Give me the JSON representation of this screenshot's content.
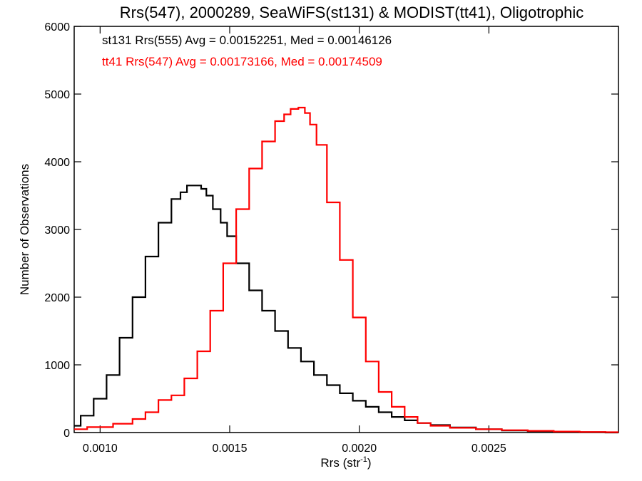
{
  "chart_data": {
    "type": "line",
    "title": "Rrs(547), 2000289, SeaWiFS(st131) & MODIST(tt41), Oligotrophic",
    "xlabel_main": "Rrs (str",
    "xlabel_sup": "-1",
    "xlabel_end": ")",
    "ylabel": "Number of Observations",
    "xlim": [
      0.0009,
      0.003
    ],
    "ylim": [
      0,
      6000
    ],
    "x_ticks": [
      {
        "value": 0.001,
        "label": "0.0010"
      },
      {
        "value": 0.0015,
        "label": "0.0015"
      },
      {
        "value": 0.002,
        "label": "0.0020"
      },
      {
        "value": 0.0025,
        "label": "0.0025"
      }
    ],
    "y_ticks": [
      {
        "value": 0,
        "label": "0"
      },
      {
        "value": 1000,
        "label": "1000"
      },
      {
        "value": 2000,
        "label": "2000"
      },
      {
        "value": 3000,
        "label": "3000"
      },
      {
        "value": 4000,
        "label": "4000"
      },
      {
        "value": 5000,
        "label": "5000"
      },
      {
        "value": 6000,
        "label": "6000"
      }
    ],
    "grid": false,
    "legend_position": "top-left",
    "series": [
      {
        "name": "st131 Rrs(555) Avg = 0.00152251, Med = 0.00146126",
        "color": "#000000",
        "x": [
          0.0009,
          0.00095,
          0.001,
          0.00105,
          0.0011,
          0.00115,
          0.0012,
          0.00125,
          0.0013,
          0.00132,
          0.00135,
          0.00138,
          0.0014,
          0.00142,
          0.00145,
          0.00148,
          0.0015,
          0.00155,
          0.0016,
          0.00165,
          0.0017,
          0.00175,
          0.0018,
          0.00185,
          0.0019,
          0.00195,
          0.002,
          0.00205,
          0.0021,
          0.00215,
          0.0022,
          0.00225,
          0.0023,
          0.0024,
          0.0025,
          0.0026,
          0.0027,
          0.0028,
          0.0029,
          0.003
        ],
        "y": [
          100,
          250,
          500,
          850,
          1400,
          2000,
          2600,
          3100,
          3450,
          3550,
          3650,
          3650,
          3600,
          3500,
          3300,
          3100,
          2900,
          2500,
          2100,
          1800,
          1500,
          1250,
          1050,
          850,
          700,
          580,
          470,
          380,
          300,
          230,
          180,
          140,
          110,
          75,
          50,
          30,
          20,
          10,
          5,
          0
        ]
      },
      {
        "name": "tt41 Rrs(547) Avg = 0.00173166, Med = 0.00174509",
        "color": "#ff0000",
        "x": [
          0.0009,
          0.001,
          0.0011,
          0.00115,
          0.0012,
          0.00125,
          0.0013,
          0.00135,
          0.0014,
          0.00145,
          0.0015,
          0.00155,
          0.0016,
          0.00165,
          0.0017,
          0.00172,
          0.00175,
          0.00178,
          0.0018,
          0.00182,
          0.00185,
          0.0019,
          0.00195,
          0.002,
          0.00205,
          0.0021,
          0.00215,
          0.0022,
          0.00225,
          0.0023,
          0.0024,
          0.0025,
          0.0026,
          0.0027,
          0.0028,
          0.0029,
          0.003
        ],
        "y": [
          50,
          80,
          130,
          200,
          300,
          480,
          550,
          800,
          1200,
          1800,
          2500,
          3300,
          3900,
          4300,
          4600,
          4700,
          4780,
          4800,
          4720,
          4550,
          4250,
          3400,
          2550,
          1700,
          1050,
          600,
          380,
          230,
          140,
          100,
          70,
          50,
          35,
          25,
          15,
          8,
          5
        ]
      }
    ]
  }
}
